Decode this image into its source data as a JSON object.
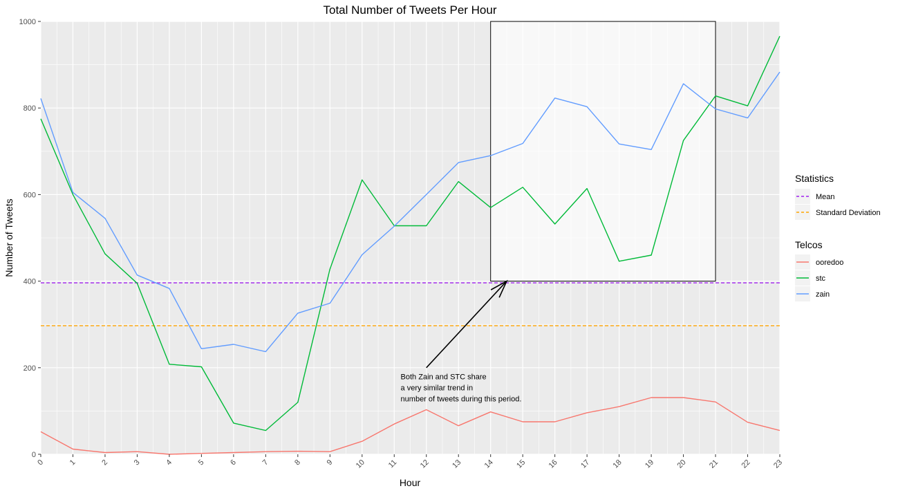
{
  "chart_data": {
    "type": "line",
    "title": "Total Number of Tweets Per Hour",
    "xlabel": "Hour",
    "ylabel": "Number of Tweets",
    "x": [
      0,
      1,
      2,
      3,
      4,
      5,
      6,
      7,
      8,
      9,
      10,
      11,
      12,
      13,
      14,
      15,
      16,
      17,
      18,
      19,
      20,
      21,
      22,
      23
    ],
    "x_tick_labels": [
      "0",
      "1",
      "2",
      "3",
      "4",
      "5",
      "6",
      "7",
      "8",
      "9",
      "10",
      "11",
      "12",
      "13",
      "14",
      "15",
      "16",
      "17",
      "18",
      "19",
      "20",
      "21",
      "22",
      "23"
    ],
    "xlim": [
      0,
      23
    ],
    "ylim": [
      0,
      1000
    ],
    "y_ticks": [
      0,
      200,
      400,
      600,
      800,
      1000
    ],
    "y_tick_labels": [
      "0",
      "200",
      "400",
      "600",
      "800",
      "1000"
    ],
    "grid": true,
    "series": [
      {
        "name": "ooredoo",
        "color": "#F8766D",
        "values": [
          52,
          12,
          4,
          6,
          0,
          2,
          4,
          6,
          7,
          6,
          30,
          70,
          103,
          66,
          98,
          75,
          75,
          96,
          110,
          131,
          131,
          121,
          74,
          55
        ]
      },
      {
        "name": "stc",
        "color": "#00BA38",
        "values": [
          775,
          600,
          463,
          395,
          208,
          202,
          72,
          55,
          120,
          428,
          634,
          528,
          528,
          630,
          570,
          617,
          532,
          614,
          446,
          460,
          725,
          828,
          805,
          966
        ]
      },
      {
        "name": "zain",
        "color": "#619CFF",
        "values": [
          822,
          605,
          545,
          414,
          383,
          244,
          254,
          237,
          326,
          349,
          461,
          527,
          600,
          674,
          690,
          718,
          823,
          803,
          717,
          704,
          856,
          798,
          777,
          883
        ]
      }
    ],
    "reference_lines": [
      {
        "name": "Mean",
        "y": 396,
        "color": "#A020F0",
        "style": "dashed"
      },
      {
        "name": "Standard Deviation",
        "y": 297,
        "color": "#FFA500",
        "style": "dashed"
      }
    ],
    "highlight_box": {
      "x": [
        14,
        21
      ],
      "y": [
        400,
        1000
      ]
    },
    "annotation": {
      "lines": [
        "Both Zain and STC share",
        "a very similar trend in",
        "number of tweets during this period."
      ],
      "text_x": 11.2,
      "text_y": 180,
      "arrow_from": {
        "x": 12,
        "y": 200
      },
      "arrow_to": {
        "x": 14.5,
        "y": 400
      }
    },
    "legends": [
      {
        "title": "Statistics",
        "entries": [
          {
            "label": "Mean",
            "color": "#A020F0",
            "style": "dashed"
          },
          {
            "label": "Standard Deviation",
            "color": "#FFA500",
            "style": "dashed"
          }
        ]
      },
      {
        "title": "Telcos",
        "entries": [
          {
            "label": "ooredoo",
            "color": "#F8766D",
            "style": "solid"
          },
          {
            "label": "stc",
            "color": "#00BA38",
            "style": "solid"
          },
          {
            "label": "zain",
            "color": "#619CFF",
            "style": "solid"
          }
        ]
      }
    ],
    "legend_placement": "right"
  }
}
